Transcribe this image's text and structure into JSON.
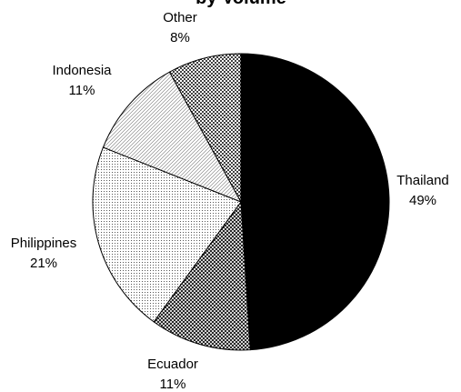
{
  "chart_data": {
    "type": "pie",
    "title": "by Volume",
    "start": "12 o'clock",
    "direction": "clockwise",
    "slices": [
      {
        "label": "Thailand",
        "value": 49,
        "display": "49%",
        "fill": "solid-black"
      },
      {
        "label": "Ecuador",
        "value": 11,
        "display": "11%",
        "fill": "diagonal-crosshatch"
      },
      {
        "label": "Philippines",
        "value": 21,
        "display": "21%",
        "fill": "fine-dots"
      },
      {
        "label": "Indonesia",
        "value": 11,
        "display": "11%",
        "fill": "diagonal-lines"
      },
      {
        "label": "Other",
        "value": 8,
        "display": "8%",
        "fill": "checker-dots"
      }
    ],
    "colors": {
      "outline": "#000000",
      "background": "#ffffff"
    }
  }
}
